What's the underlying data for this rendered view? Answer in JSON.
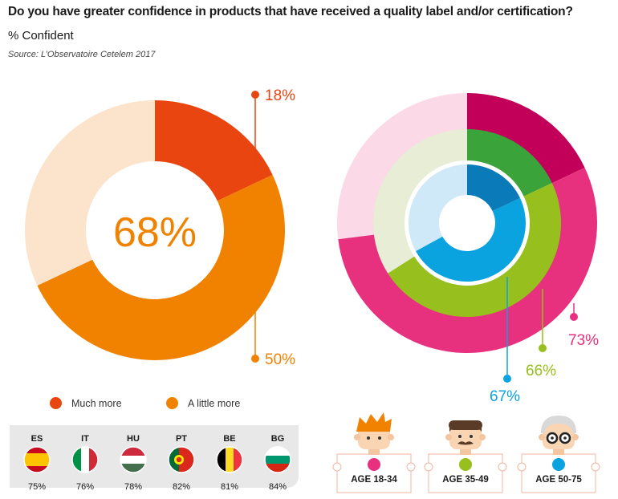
{
  "header": {
    "title": "Do you have greater confidence in products that have received a quality label and/or certification?",
    "subtitle": "% Confident",
    "source": "Source: L’Observatoire Cetelem 2017"
  },
  "chart_data": [
    {
      "type": "pie",
      "variant": "donut",
      "center_label": "68%",
      "slices": [
        {
          "label": "Much more",
          "value": 18,
          "display": "18%",
          "color": "#e84511"
        },
        {
          "label": "A little more",
          "value": 50,
          "display": "50%",
          "color": "#f08200"
        },
        {
          "label": "",
          "value": 32,
          "color": "#fce3cb"
        }
      ],
      "legend": [
        {
          "label": "Much more",
          "color": "#e84511"
        },
        {
          "label": "A little more",
          "color": "#f08200"
        }
      ]
    },
    {
      "type": "pie",
      "variant": "concentric-rings",
      "rings": [
        {
          "label": "AGE 18-34",
          "value": 73,
          "display": "73%",
          "colors": {
            "main": "#e8317e",
            "accent": "#c2005a",
            "bg": "#fbd9e6"
          },
          "accent_value": 18
        },
        {
          "label": "AGE 35-49",
          "value": 66,
          "display": "66%",
          "colors": {
            "main": "#97bf1d",
            "accent": "#3aa33a",
            "bg": "#e8edd6"
          },
          "accent_value": 18
        },
        {
          "label": "AGE 50-75",
          "value": 67,
          "display": "67%",
          "colors": {
            "main": "#0aa3e0",
            "accent": "#0a7bb8",
            "bg": "#cfe9f8"
          },
          "accent_value": 18
        }
      ]
    },
    {
      "type": "table",
      "columns": [
        "ES",
        "IT",
        "HU",
        "PT",
        "BE",
        "BG"
      ],
      "values": [
        "75%",
        "76%",
        "78%",
        "82%",
        "81%",
        "84%"
      ]
    }
  ],
  "legend": {
    "much_more": "Much more",
    "a_little_more": "A little more"
  },
  "countries": [
    {
      "code": "ES",
      "pct": "75%",
      "flag": "spain-flag-icon"
    },
    {
      "code": "IT",
      "pct": "76%",
      "flag": "italy-flag-icon"
    },
    {
      "code": "HU",
      "pct": "78%",
      "flag": "hungary-flag-icon"
    },
    {
      "code": "PT",
      "pct": "82%",
      "flag": "portugal-flag-icon"
    },
    {
      "code": "BE",
      "pct": "81%",
      "flag": "belgium-flag-icon"
    },
    {
      "code": "BG",
      "pct": "84%",
      "flag": "bulgaria-flag-icon"
    }
  ],
  "ages": [
    {
      "label": "AGE 18-34",
      "color": "#e8317e",
      "icon": "young-person-icon"
    },
    {
      "label": "AGE 35-49",
      "color": "#97bf1d",
      "icon": "mustache-man-icon"
    },
    {
      "label": "AGE 50-75",
      "color": "#0aa3e0",
      "icon": "elderly-person-glasses-icon"
    }
  ]
}
